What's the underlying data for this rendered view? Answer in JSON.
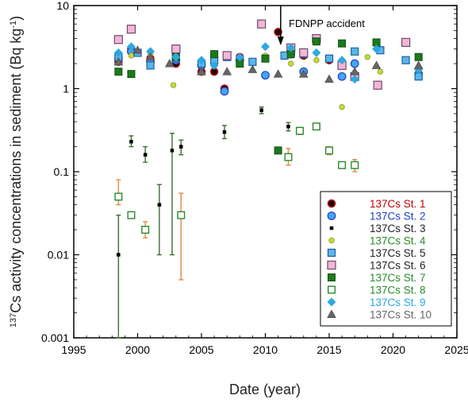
{
  "chart_data": {
    "type": "scatter",
    "title": "",
    "xlabel": "Date (year)",
    "ylabel_sup": "137",
    "ylabel": "Cs activity concentrations in sediment (Bq kg",
    "ylabel_unit_sup": "-1",
    "ylabel_close": ")",
    "xlim": [
      1995,
      2025
    ],
    "ylim": [
      0.001,
      10
    ],
    "y_scale": "log",
    "x_ticks": [
      "1995",
      "2000",
      "2005",
      "2010",
      "2015",
      "2020",
      "2025"
    ],
    "y_ticks": [
      "0.001",
      "0.01",
      "0.1",
      "1",
      "10"
    ],
    "grid": false,
    "legend_position": "bottom-right",
    "annotation": {
      "text": "FDNPP accident",
      "x": 2011.2
    },
    "series": [
      {
        "name": "137Cs St. 1",
        "color": "#c00000",
        "marker": "circle-filled-dark",
        "points": [
          [
            1998.5,
            2.1
          ],
          [
            1999.5,
            3.0
          ],
          [
            2001,
            2.3
          ],
          [
            2003,
            2.0
          ],
          [
            2005,
            1.6
          ],
          [
            2006,
            1.6
          ],
          [
            2006.8,
            1.0
          ],
          [
            2008,
            2.4
          ],
          [
            2011,
            4.8
          ],
          [
            2013,
            2.5
          ],
          [
            2015,
            2.2
          ]
        ]
      },
      {
        "name": "137Cs St. 2",
        "color": "#1f3fbf",
        "marker": "circle-blue",
        "points": [
          [
            1998.5,
            2.3
          ],
          [
            1999.5,
            2.8
          ],
          [
            2001,
            2.1
          ],
          [
            2003,
            2.2
          ],
          [
            2005,
            1.9
          ],
          [
            2006.8,
            0.93
          ],
          [
            2008,
            2.2
          ],
          [
            2010,
            1.45
          ],
          [
            2012,
            2.6
          ],
          [
            2013,
            1.6
          ],
          [
            2016,
            1.4
          ],
          [
            2017,
            2.0
          ],
          [
            2022,
            1.5
          ]
        ]
      },
      {
        "name": "137Cs St. 3",
        "color": "#000000",
        "marker": "square-small-black",
        "points": [
          [
            1998.5,
            0.01
          ],
          [
            1999.5,
            0.23
          ],
          [
            2000.6,
            0.16
          ],
          [
            2001.7,
            0.04
          ],
          [
            2002.7,
            0.18
          ],
          [
            2003.4,
            0.2
          ],
          [
            2006.8,
            0.3
          ],
          [
            2009.7,
            0.55
          ],
          [
            2011.8,
            0.35
          ]
        ],
        "errors": [
          [
            1998.5,
            0.001,
            0.03
          ],
          [
            1999.5,
            0.2,
            0.27
          ],
          [
            2000.6,
            0.13,
            0.2
          ],
          [
            2001.7,
            0.01,
            0.07
          ],
          [
            2002.7,
            0.01,
            0.29
          ],
          [
            2003.4,
            0.16,
            0.24
          ],
          [
            2006.8,
            0.25,
            0.36
          ],
          [
            2009.7,
            0.5,
            0.6
          ],
          [
            2011.8,
            0.31,
            0.39
          ]
        ]
      },
      {
        "name": "137Cs St. 4",
        "color": "#2a8a2a",
        "marker": "circle-yellow",
        "points": [
          [
            1999.5,
            2.5
          ],
          [
            2001,
            2.6
          ],
          [
            2002.8,
            1.1
          ],
          [
            2005,
            2.0
          ],
          [
            2008,
            2.0
          ],
          [
            2010,
            2.5
          ],
          [
            2012,
            2.0
          ],
          [
            2014,
            2.2
          ],
          [
            2015,
            2.3
          ],
          [
            2016,
            0.6
          ],
          [
            2018,
            2.4
          ],
          [
            2019,
            1.6
          ]
        ]
      },
      {
        "name": "137Cs St. 5",
        "color": "#000000",
        "marker": "square-lightblue",
        "points": [
          [
            1998.5,
            2.4
          ],
          [
            2000,
            2.7
          ],
          [
            2001,
            1.9
          ],
          [
            2003,
            2.3
          ],
          [
            2005,
            2.0
          ],
          [
            2006,
            2.2
          ],
          [
            2007,
            2.4
          ],
          [
            2009,
            2.1
          ],
          [
            2011.5,
            2.5
          ],
          [
            2013,
            2.6
          ],
          [
            2015,
            2.3
          ],
          [
            2017,
            2.8
          ],
          [
            2019,
            2.9
          ],
          [
            2021,
            2.2
          ],
          [
            2022,
            1.4
          ]
        ]
      },
      {
        "name": "137Cs St. 6",
        "color": "#000000",
        "marker": "square-pink",
        "points": [
          [
            1998.5,
            3.9
          ],
          [
            1999.5,
            5.2
          ],
          [
            2003,
            3.0
          ],
          [
            2007,
            2.5
          ],
          [
            2009.7,
            6.0
          ],
          [
            2012,
            3.1
          ],
          [
            2013,
            2.7
          ],
          [
            2014,
            4.0
          ],
          [
            2016,
            1.9
          ],
          [
            2017,
            1.4
          ],
          [
            2018.8,
            1.1
          ],
          [
            2021,
            3.6
          ]
        ]
      },
      {
        "name": "137Cs St. 7",
        "color": "#2a8a2a",
        "marker": "square-darkgreen",
        "points": [
          [
            1998.5,
            1.6
          ],
          [
            1999.5,
            1.5
          ],
          [
            2003,
            2.4
          ],
          [
            2006,
            2.6
          ],
          [
            2008,
            2.0
          ],
          [
            2010,
            2.3
          ],
          [
            2011,
            0.18
          ],
          [
            2012,
            2.6
          ],
          [
            2014,
            3.7
          ],
          [
            2016,
            3.5
          ],
          [
            2018.7,
            3.6
          ],
          [
            2022,
            2.4
          ]
        ]
      },
      {
        "name": "137Cs St. 8",
        "color": "#2a8a2a",
        "marker": "square-open-green",
        "points": [
          [
            1998.5,
            0.05
          ],
          [
            1999.5,
            0.03
          ],
          [
            2000.6,
            0.02
          ],
          [
            2003.4,
            0.03
          ],
          [
            2011.8,
            0.15
          ],
          [
            2012.7,
            0.31
          ],
          [
            2014,
            0.35
          ],
          [
            2015,
            0.18
          ],
          [
            2016,
            0.12
          ],
          [
            2017,
            0.12
          ]
        ],
        "errors": [
          [
            1998.5,
            0.04,
            0.08
          ],
          [
            1999.5,
            0.028,
            0.032
          ],
          [
            2000.6,
            0.016,
            0.025
          ],
          [
            2003.4,
            0.005,
            0.055
          ],
          [
            2011.8,
            0.12,
            0.19
          ],
          [
            2012.7,
            0.28,
            0.34
          ],
          [
            2014,
            0.32,
            0.38
          ],
          [
            2015,
            0.16,
            0.2
          ],
          [
            2016,
            0.11,
            0.13
          ],
          [
            2017,
            0.1,
            0.14
          ]
        ]
      },
      {
        "name": "137Cs St. 9",
        "color": "#2ea8e0",
        "marker": "diamond-lightblue",
        "points": [
          [
            1998.5,
            2.7
          ],
          [
            1999.5,
            3.2
          ],
          [
            2001,
            2.8
          ],
          [
            2003,
            2.4
          ],
          [
            2005,
            2.2
          ],
          [
            2006,
            1.9
          ],
          [
            2008,
            2.4
          ],
          [
            2010,
            3.2
          ],
          [
            2012,
            3.1
          ],
          [
            2014,
            2.7
          ],
          [
            2016,
            2.2
          ],
          [
            2017,
            1.3
          ],
          [
            2018.7,
            3.0
          ],
          [
            2022,
            1.7
          ]
        ]
      },
      {
        "name": "137Cs St. 10",
        "color": "#666666",
        "marker": "triangle-grey",
        "points": [
          [
            1998.5,
            2.1
          ],
          [
            2000,
            2.9
          ],
          [
            2001,
            2.4
          ],
          [
            2002.5,
            2.0
          ],
          [
            2005,
            1.6
          ],
          [
            2007,
            1.6
          ],
          [
            2009,
            1.7
          ],
          [
            2011,
            1.5
          ],
          [
            2013,
            1.5
          ],
          [
            2015,
            1.3
          ],
          [
            2017,
            1.6
          ],
          [
            2018.7,
            1.9
          ],
          [
            2022,
            1.9
          ]
        ]
      }
    ],
    "errorbar_colors": {
      "137Cs St. 3": "#3c6e2e",
      "137Cs St. 8": "#e08a3c"
    }
  }
}
